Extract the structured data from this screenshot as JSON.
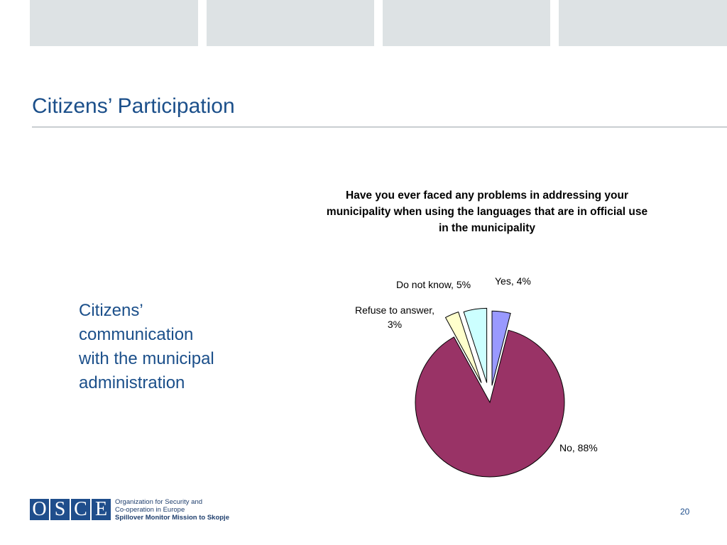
{
  "slide": {
    "title": "Citizens’ Participation",
    "side_text": "Citizens’\ncommunication\nwith the municipal\nadministration",
    "page_number": "20"
  },
  "logo": {
    "letters": [
      "O",
      "S",
      "C",
      "E"
    ],
    "org_line1": "Organization for Security and",
    "org_line2": "Co-operation in Europe",
    "org_line3": "Spillover Monitor Mission to Skopje"
  },
  "chart_data": {
    "type": "pie",
    "title_lines": [
      "Have you ever faced any problems in addressing your",
      "municipality when using the languages that are in official use",
      "in the municipality"
    ],
    "slices": [
      {
        "label": "Yes",
        "value": 4,
        "display": "Yes, 4%",
        "color": "#9999ff"
      },
      {
        "label": "No",
        "value": 88,
        "display": "No, 88%",
        "color": "#993366"
      },
      {
        "label": "Refuse to answer",
        "value": 3,
        "display_lines": [
          "Refuse to answer,",
          "3%"
        ],
        "color": "#ffffcc"
      },
      {
        "label": "Do not know",
        "value": 5,
        "display": "Do not know, 5%",
        "color": "#ccffff"
      }
    ],
    "exploded": true,
    "legend": "none",
    "colors": {
      "outline": "#000000"
    }
  },
  "theme": {
    "title_color": "#1b4f8a",
    "header_block_color": "#dde2e4"
  }
}
